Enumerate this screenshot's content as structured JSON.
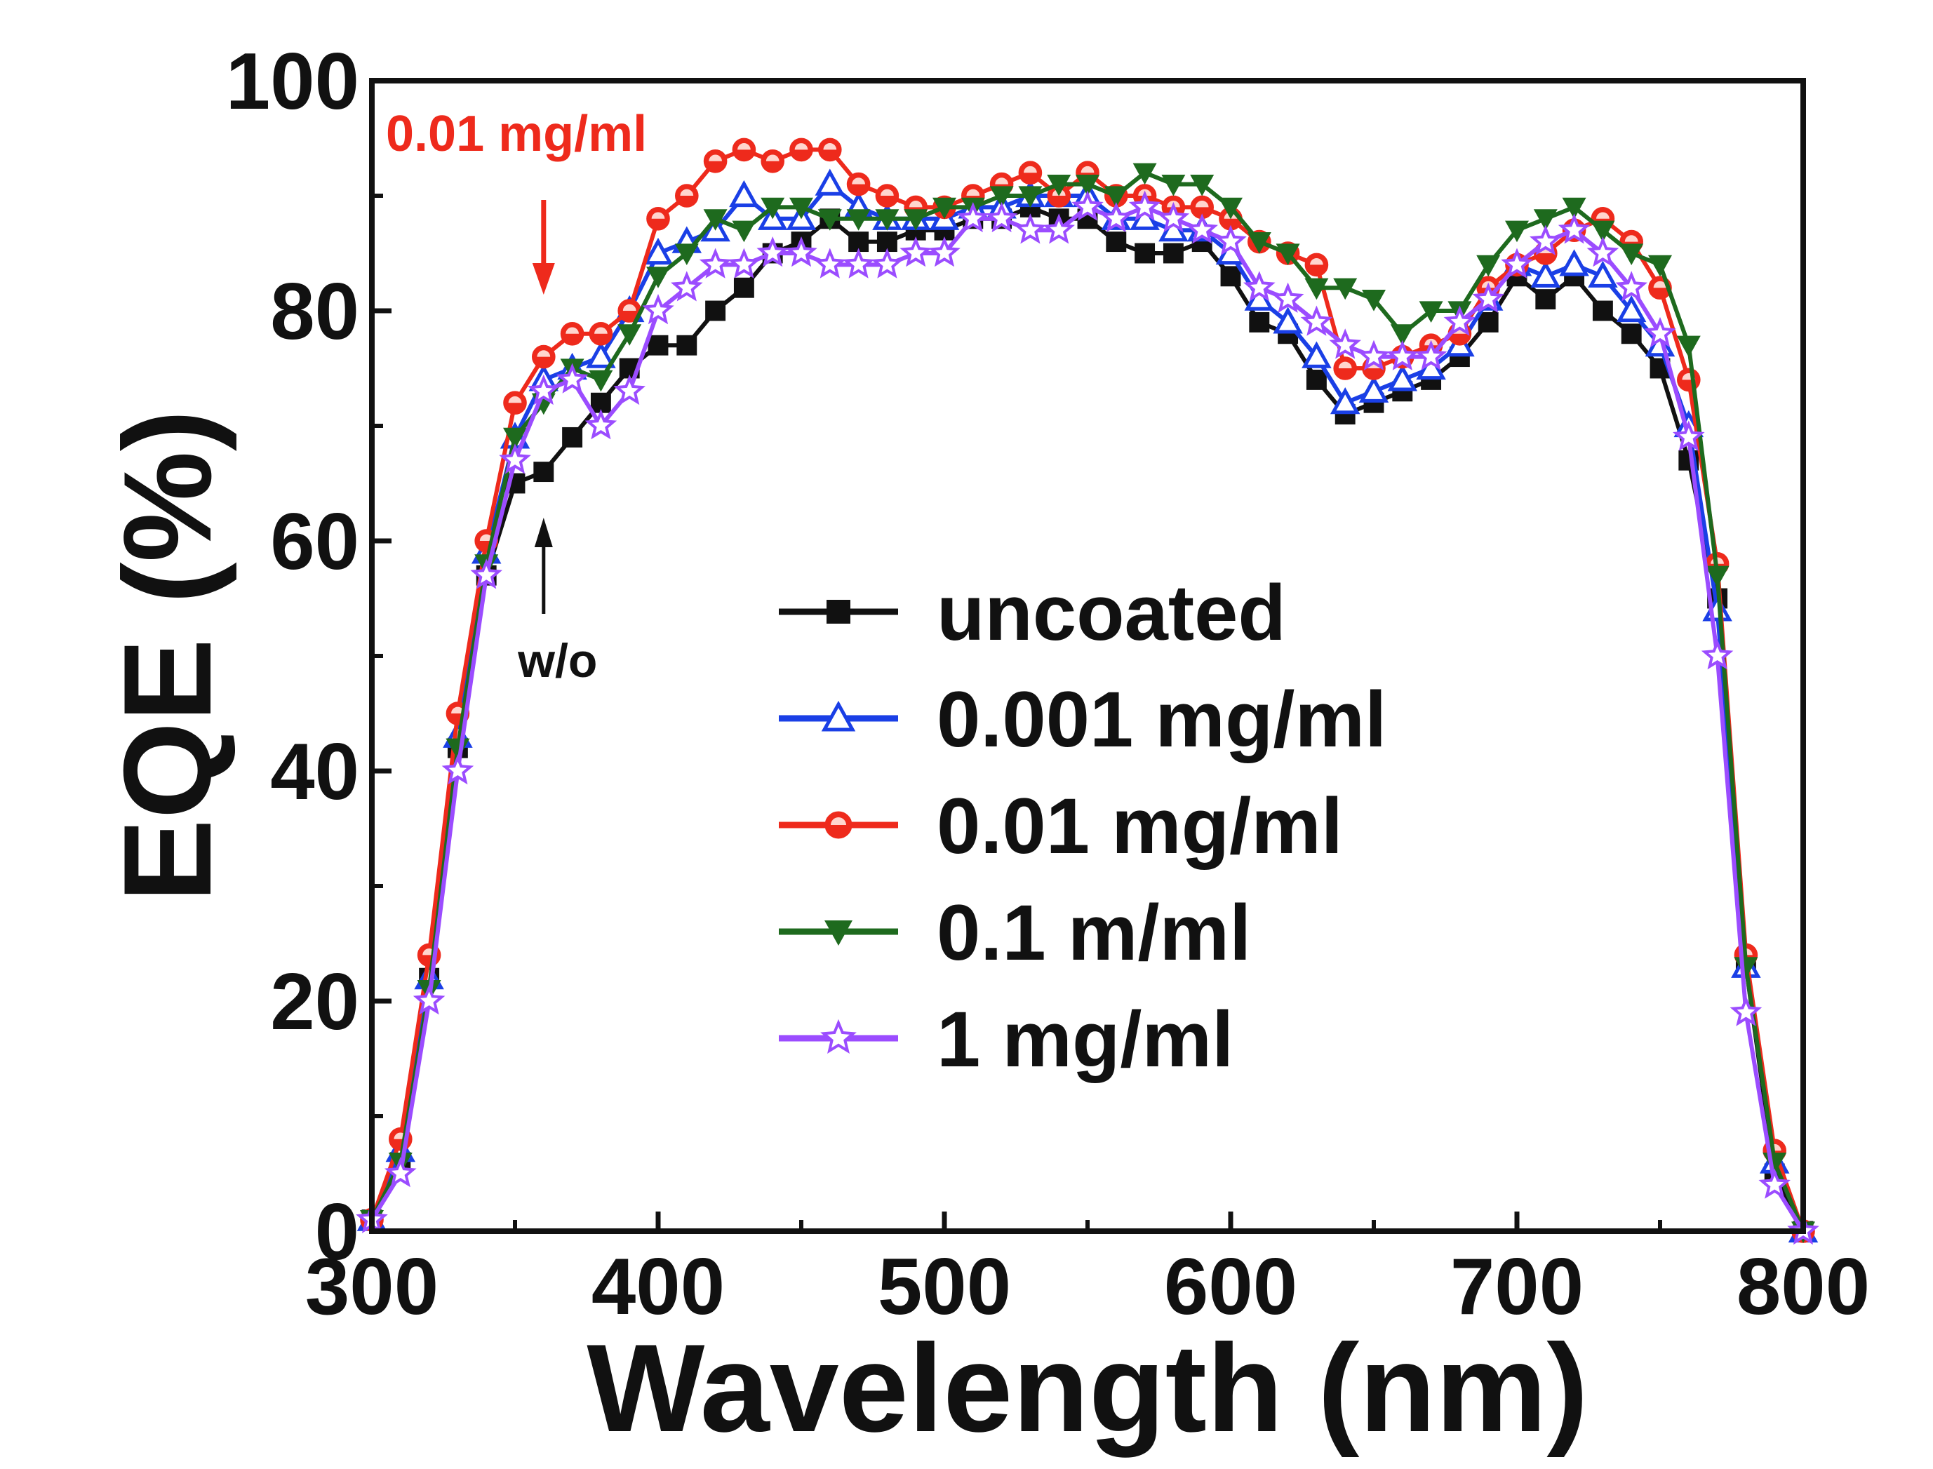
{
  "chart_data": {
    "type": "line",
    "xlabel": "Wavelength (nm)",
    "ylabel": "EQE (%)",
    "xlim": [
      300,
      800
    ],
    "ylim": [
      0,
      100
    ],
    "xticks": [
      "300",
      "400",
      "500",
      "600",
      "700",
      "800"
    ],
    "yticks": [
      "0",
      "20",
      "40",
      "60",
      "80",
      "100"
    ],
    "grid": false,
    "legend_position": "center-right",
    "annotations": [
      {
        "text": "0.01 mg/ml",
        "color": "#ee2a1c",
        "points_to_x": 360,
        "direction": "down"
      },
      {
        "text": "w/o",
        "color": "#111111",
        "points_to_x": 360,
        "direction": "up"
      }
    ],
    "x": [
      300,
      310,
      320,
      330,
      340,
      350,
      360,
      370,
      380,
      390,
      400,
      410,
      420,
      430,
      440,
      450,
      460,
      470,
      480,
      490,
      500,
      510,
      520,
      530,
      540,
      550,
      560,
      570,
      580,
      590,
      600,
      610,
      620,
      630,
      640,
      650,
      660,
      670,
      680,
      690,
      700,
      710,
      720,
      730,
      740,
      750,
      760,
      770,
      780,
      790,
      800
    ],
    "series": [
      {
        "name": "uncoated",
        "color": "#111111",
        "marker": "square",
        "values": [
          1,
          6,
          22,
          42,
          57,
          65,
          66,
          69,
          72,
          75,
          77,
          77,
          80,
          82,
          85,
          86,
          88,
          86,
          86,
          87,
          87,
          88,
          88,
          89,
          88,
          88,
          86,
          85,
          85,
          86,
          83,
          79,
          78,
          74,
          71,
          72,
          73,
          74,
          76,
          79,
          83,
          81,
          83,
          80,
          78,
          75,
          67,
          55,
          23,
          5,
          0
        ]
      },
      {
        "name": "0.001 mg/ml",
        "color": "#1a3fe6",
        "marker": "triangle-up-open",
        "values": [
          1,
          7,
          22,
          43,
          59,
          69,
          74,
          75,
          76,
          80,
          85,
          86,
          87,
          90,
          88,
          88,
          91,
          89,
          88,
          88,
          88,
          89,
          89,
          90,
          90,
          90,
          88,
          88,
          87,
          87,
          85,
          81,
          79,
          76,
          72,
          73,
          74,
          75,
          77,
          81,
          84,
          83,
          84,
          83,
          80,
          77,
          70,
          54,
          23,
          6,
          0
        ]
      },
      {
        "name": "0.01 mg/ml",
        "color": "#ee2a1c",
        "marker": "circle-half",
        "values": [
          1,
          8,
          24,
          45,
          60,
          72,
          76,
          78,
          78,
          80,
          88,
          90,
          93,
          94,
          93,
          94,
          94,
          91,
          90,
          89,
          89,
          90,
          91,
          92,
          90,
          92,
          90,
          90,
          89,
          89,
          88,
          86,
          85,
          84,
          75,
          75,
          76,
          77,
          78,
          82,
          84,
          85,
          87,
          88,
          86,
          82,
          74,
          58,
          24,
          7,
          0
        ]
      },
      {
        "name": "0.1 m/ml",
        "color": "#1e6a1e",
        "marker": "triangle-down",
        "values": [
          1,
          6,
          21,
          42,
          58,
          69,
          72,
          75,
          74,
          78,
          83,
          85,
          88,
          87,
          89,
          89,
          88,
          88,
          88,
          88,
          89,
          89,
          90,
          90,
          91,
          91,
          90,
          92,
          91,
          91,
          89,
          86,
          85,
          82,
          82,
          81,
          78,
          80,
          80,
          84,
          87,
          88,
          89,
          87,
          85,
          84,
          77,
          57,
          23,
          6,
          0
        ]
      },
      {
        "name": "1 mg/ml",
        "color": "#9b4cff",
        "marker": "star-open",
        "values": [
          1,
          5,
          20,
          40,
          57,
          67,
          73,
          74,
          70,
          73,
          80,
          82,
          84,
          84,
          85,
          85,
          84,
          84,
          84,
          85,
          85,
          88,
          88,
          87,
          87,
          89,
          88,
          89,
          88,
          87,
          86,
          82,
          81,
          79,
          77,
          76,
          76,
          76,
          79,
          81,
          84,
          86,
          87,
          85,
          82,
          78,
          69,
          50,
          19,
          4,
          0
        ]
      }
    ]
  }
}
